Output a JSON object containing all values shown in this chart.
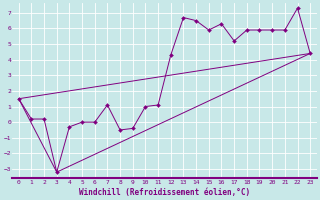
{
  "xlabel": "Windchill (Refroidissement éolien,°C)",
  "bg_color": "#c8e8e8",
  "line_color": "#800080",
  "grid_color": "#a0c8c8",
  "xlim": [
    -0.5,
    23.5
  ],
  "ylim": [
    -3.6,
    7.6
  ],
  "yticks": [
    -3,
    -2,
    -1,
    0,
    1,
    2,
    3,
    4,
    5,
    6,
    7
  ],
  "xticks": [
    0,
    1,
    2,
    3,
    4,
    5,
    6,
    7,
    8,
    9,
    10,
    11,
    12,
    13,
    14,
    15,
    16,
    17,
    18,
    19,
    20,
    21,
    22,
    23
  ],
  "series1_x": [
    0,
    1,
    2,
    3,
    4,
    5,
    6,
    7,
    8,
    9,
    10,
    11,
    12,
    13,
    14,
    15,
    16,
    17,
    18,
    19,
    20,
    21,
    22,
    23
  ],
  "series1_y": [
    1.5,
    0.2,
    0.2,
    -3.2,
    -0.3,
    0.0,
    0.0,
    1.1,
    -0.5,
    -0.4,
    1.0,
    1.1,
    4.3,
    6.7,
    6.5,
    5.9,
    6.3,
    5.2,
    5.9,
    5.9,
    5.9,
    5.9,
    7.3,
    4.4
  ],
  "series2_x": [
    0,
    23
  ],
  "series2_y": [
    1.5,
    4.4
  ],
  "series3_x": [
    0,
    3,
    23
  ],
  "series3_y": [
    1.5,
    -3.2,
    4.4
  ],
  "label_fontsize": 5.5,
  "tick_fontsize": 4.5,
  "marker": "D",
  "marker_size": 2.0,
  "linewidth": 0.7,
  "bottom_bar_color": "#800080"
}
